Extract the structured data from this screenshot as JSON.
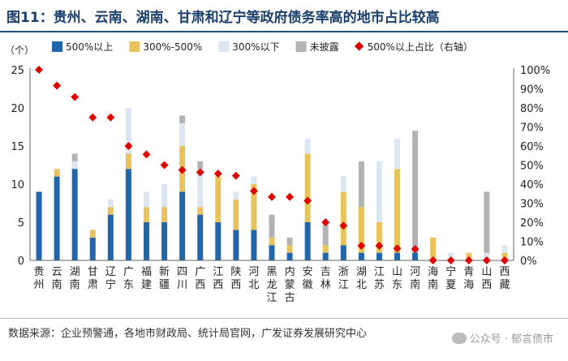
{
  "title": "图11：贵州、云南、湖南、甘肃和辽宁等政府债务率高的地市占比较高",
  "source": "数据来源：企业预警通，各地市财政局、统计局官网，广发证券发展研究中心",
  "watermark": "公众号 · 郁言债市",
  "colors": {
    "gt500": "#2166ab",
    "r300_500": "#e8c35c",
    "lt300": "#dce6f2",
    "undisclosed": "#b3b3b3",
    "share": "#e00000",
    "title": "#1a3f6b"
  },
  "chart_data": {
    "type": "bar",
    "stacked": true,
    "unit_label": "（个）",
    "categories": [
      "贵州",
      "云南",
      "湖南",
      "甘肃",
      "辽宁",
      "广东",
      "福建",
      "新疆",
      "四川",
      "广西",
      "江西",
      "陕西",
      "河北",
      "黑龙江",
      "内蒙古",
      "安徽",
      "吉林",
      "浙江",
      "湖北",
      "江苏",
      "山东",
      "河南",
      "海南",
      "宁夏",
      "青海",
      "山西",
      "西藏"
    ],
    "series": [
      {
        "name": "500%以上",
        "values": [
          9,
          11,
          12,
          3,
          6,
          12,
          5,
          5,
          9,
          6,
          5,
          4,
          4,
          2,
          1,
          5,
          1,
          2,
          1,
          1,
          1,
          1,
          0,
          0,
          0,
          0,
          0
        ]
      },
      {
        "name": "300%-500%",
        "values": [
          0,
          1,
          0,
          1,
          1,
          2,
          2,
          2,
          6,
          1,
          6,
          4,
          6,
          1,
          1,
          9,
          1,
          7,
          6,
          4,
          11,
          0,
          3,
          0,
          1,
          0,
          1
        ]
      },
      {
        "name": "300%以下",
        "values": [
          0,
          0,
          1,
          0,
          1,
          6,
          2,
          3,
          3,
          5,
          0,
          1,
          1,
          0,
          0,
          2,
          0,
          2,
          0,
          8,
          4,
          0,
          0,
          1,
          0,
          1,
          1
        ]
      },
      {
        "name": "未披露",
        "values": [
          0,
          0,
          1,
          0,
          0,
          0,
          0,
          0,
          1,
          1,
          0,
          0,
          0,
          3,
          1,
          0,
          3,
          0,
          6,
          0,
          0,
          16,
          0,
          0,
          0,
          8,
          0
        ]
      }
    ],
    "share_series": {
      "name": "500%以上占比（右轴）",
      "values": [
        100,
        91.7,
        85.7,
        75,
        75,
        60,
        55.6,
        50,
        47.4,
        46.2,
        45.5,
        44.4,
        36.4,
        33.3,
        33.3,
        31.3,
        20,
        18.2,
        7.7,
        7.7,
        6.3,
        5.9,
        0,
        0,
        0,
        0,
        0
      ]
    },
    "y_left": {
      "min": 0,
      "max": 25,
      "ticks": [
        0,
        5,
        10,
        15,
        20,
        25
      ]
    },
    "y_right": {
      "min": 0,
      "max": 100,
      "ticks": [
        "0%",
        "10%",
        "20%",
        "30%",
        "40%",
        "50%",
        "60%",
        "70%",
        "80%",
        "90%",
        "100%"
      ]
    },
    "legend_position": "top"
  }
}
